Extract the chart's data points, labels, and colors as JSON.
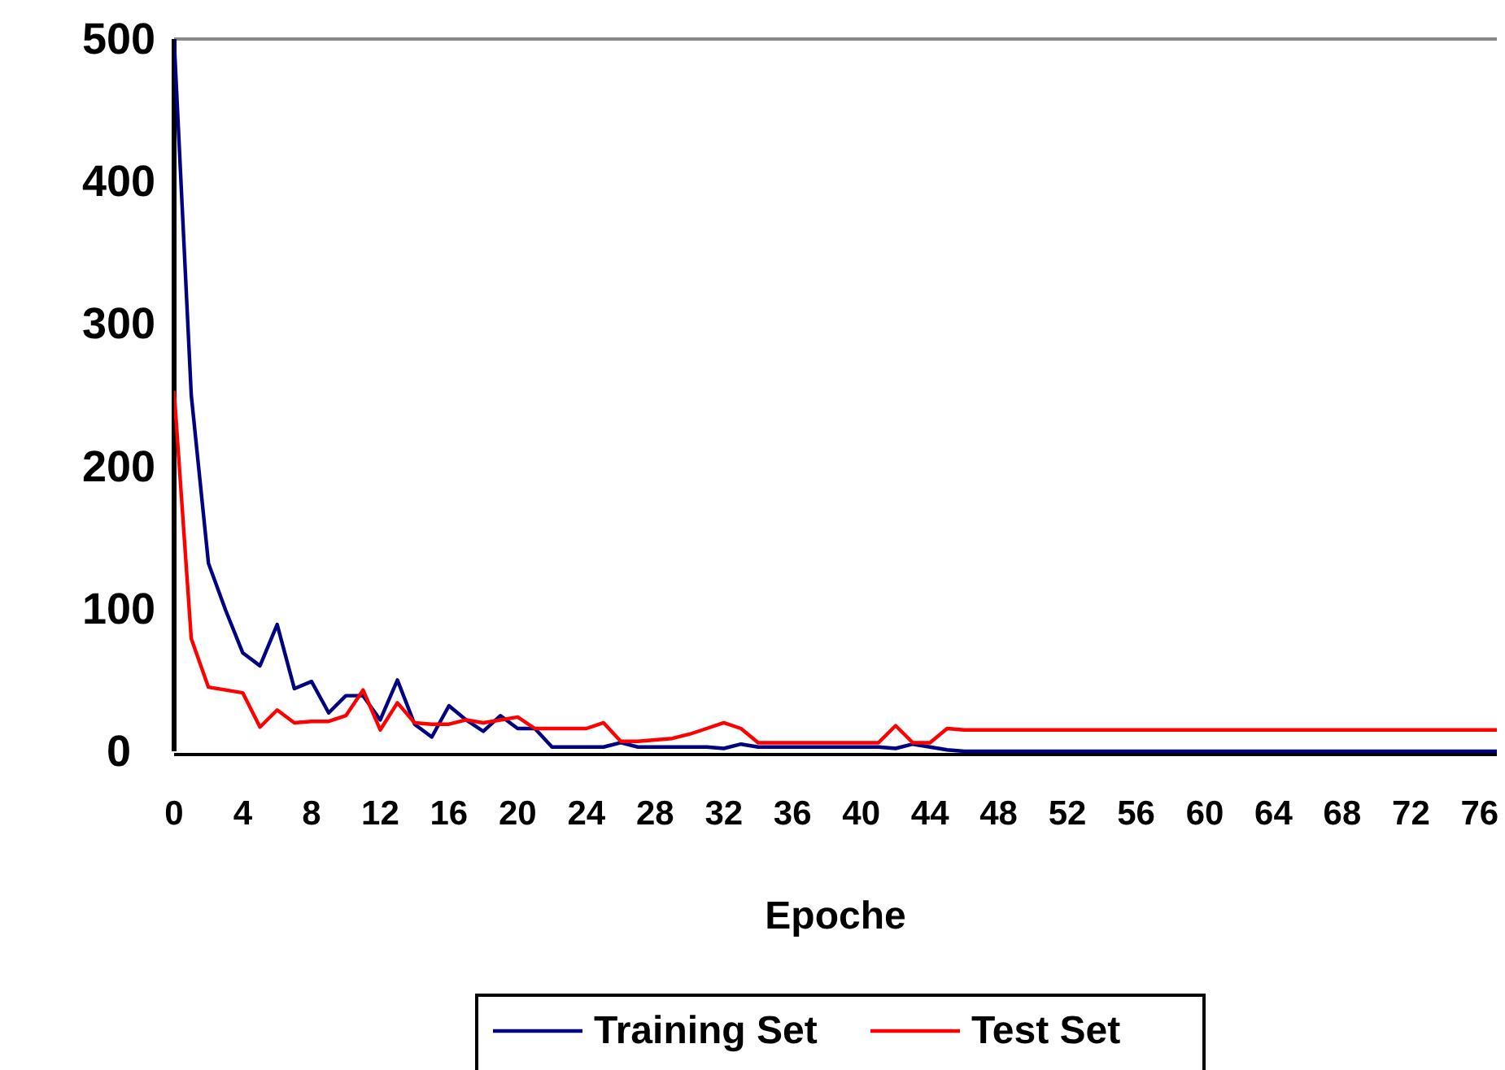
{
  "chart_data": {
    "type": "line",
    "xlabel": "Epoche",
    "x": [
      0,
      1,
      2,
      3,
      4,
      5,
      6,
      7,
      8,
      9,
      10,
      11,
      12,
      13,
      14,
      15,
      16,
      17,
      18,
      19,
      20,
      21,
      22,
      23,
      24,
      25,
      26,
      27,
      28,
      29,
      30,
      31,
      32,
      33,
      34,
      35,
      36,
      37,
      38,
      39,
      40,
      41,
      42,
      43,
      44,
      45,
      46,
      47,
      48,
      49,
      50,
      51,
      52,
      53,
      54,
      55,
      56,
      57,
      58,
      59,
      60,
      61,
      62,
      63,
      64,
      65,
      66,
      67,
      68,
      69,
      70,
      71,
      72,
      73,
      74,
      75,
      76,
      77
    ],
    "series": [
      {
        "name": "Training Set",
        "color": "#000080",
        "values": [
          500,
          250,
          132,
          99,
          69,
          60,
          89,
          44,
          49,
          27,
          39,
          39,
          22,
          50,
          19,
          10,
          32,
          22,
          14,
          25,
          16,
          16,
          3,
          3,
          3,
          3,
          6,
          3,
          3,
          3,
          3,
          3,
          2,
          5,
          3,
          3,
          3,
          3,
          3,
          3,
          3,
          3,
          2,
          5,
          3,
          1,
          0,
          0,
          0,
          0,
          0,
          0,
          0,
          0,
          0,
          0,
          0,
          0,
          0,
          0,
          0,
          0,
          0,
          0,
          0,
          0,
          0,
          0,
          0,
          0,
          0,
          0,
          0,
          0,
          0,
          0,
          0,
          0
        ]
      },
      {
        "name": "Test Set",
        "color": "#ff0000",
        "values": [
          253,
          79,
          45,
          43,
          41,
          17,
          29,
          20,
          21,
          21,
          25,
          43,
          15,
          34,
          20,
          19,
          19,
          22,
          20,
          22,
          24,
          16,
          16,
          16,
          16,
          20,
          7,
          7,
          8,
          9,
          12,
          16,
          20,
          16,
          6,
          6,
          6,
          6,
          6,
          6,
          6,
          6,
          18,
          6,
          6,
          16,
          15,
          15,
          15,
          15,
          15,
          15,
          15,
          15,
          15,
          15,
          15,
          15,
          15,
          15,
          15,
          15,
          15,
          15,
          15,
          15,
          15,
          15,
          15,
          15,
          15,
          15,
          15,
          15,
          15,
          15,
          15,
          15
        ]
      }
    ],
    "xlim": [
      0,
      77
    ],
    "xticks": [
      0,
      4,
      8,
      12,
      16,
      20,
      24,
      28,
      32,
      36,
      40,
      44,
      48,
      52,
      56,
      60,
      64,
      68,
      72,
      76
    ],
    "ylim": [
      0,
      500
    ],
    "yticks": [
      0,
      100,
      200,
      300,
      400,
      500
    ],
    "legend": "bottom",
    "marker": "none",
    "line_style": "solid"
  }
}
